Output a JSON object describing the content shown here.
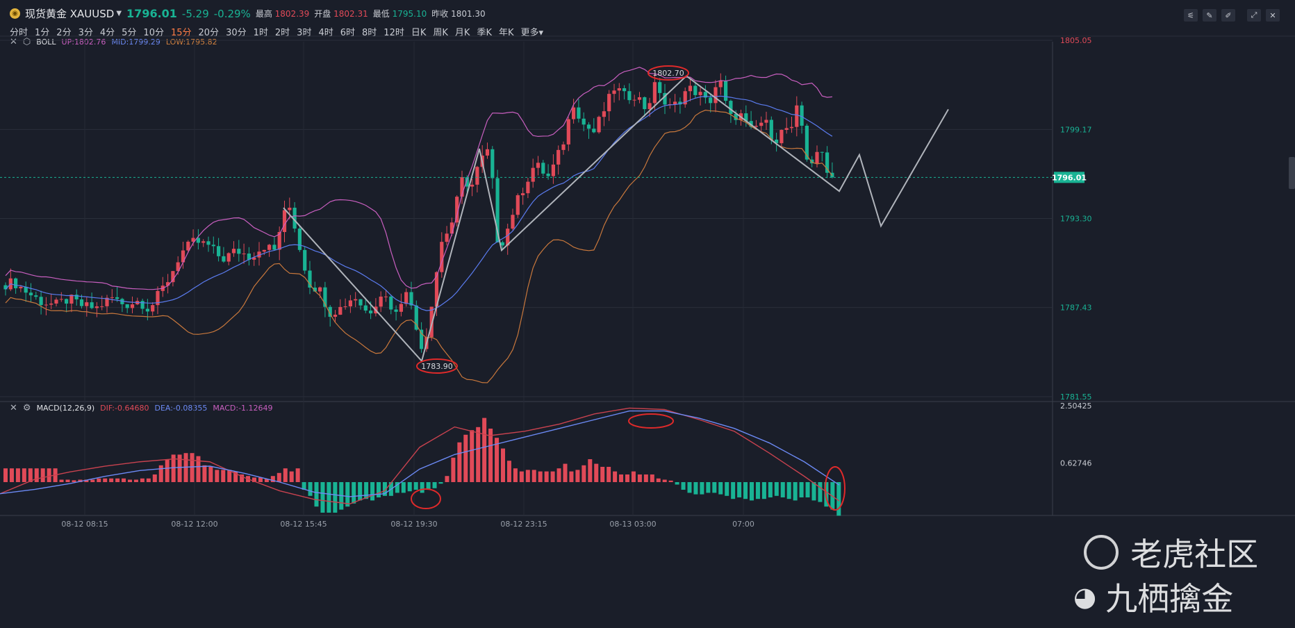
{
  "header": {
    "coin_icon": "gold-coin-icon",
    "symbol": "现货黄金 XAUUSD",
    "price": "1796.01",
    "change": "-5.29",
    "change_pct": "-0.29%",
    "high_label": "最高",
    "high": "1802.39",
    "open_label": "开盘",
    "open": "1802.31",
    "low_label": "最低",
    "low": "1795.10",
    "prev_label": "昨收",
    "prev": "1801.30"
  },
  "periods": [
    "分时",
    "1分",
    "2分",
    "3分",
    "4分",
    "5分",
    "10分",
    "15分",
    "20分",
    "30分",
    "1时",
    "2时",
    "3时",
    "4时",
    "6时",
    "8时",
    "12时",
    "日K",
    "周K",
    "月K",
    "季K",
    "年K",
    "更多"
  ],
  "active_period": "15分",
  "boll": {
    "name": "BOLL",
    "up": "UP:1802.76",
    "mid": "MID:1799.29",
    "low": "LOW:1795.82"
  },
  "macd": {
    "name": "MACD(12,26,9)",
    "dif": "DIF:-0.64680",
    "dea": "DEA:-0.08355",
    "macd": "MACD:-1.12649"
  },
  "colors": {
    "up": "#e14a58",
    "down": "#19b394",
    "boll_up": "#c95fc0",
    "boll_mid": "#5b7cf0",
    "boll_low": "#c9783c",
    "drawing": "#b0b4bb",
    "annotation": "#e02a2a",
    "last_price_bg": "#19b394"
  },
  "chart_data": [
    {
      "type": "candlestick",
      "name": "XAUUSD 15分",
      "ylim": [
        1781.55,
        1805.05
      ],
      "y_ticks": [
        "1805.05",
        "1799.17",
        "1793.30",
        "1787.43",
        "1781.55"
      ],
      "last_price_tag": "1796.01",
      "x_tick_labels": [
        "08-12 08:15",
        "08-12 12:00",
        "08-12 15:45",
        "08-12 19:30",
        "08-12 23:15",
        "08-13 03:00",
        "07:00"
      ],
      "annotations": [
        "1783.90",
        "1802.70"
      ]
    },
    {
      "type": "bar",
      "name": "MACD",
      "y_ticks": [
        "2.50425",
        "0.62746"
      ],
      "histogram": [
        0.45,
        0.45,
        0.45,
        0.45,
        0.45,
        0.45,
        0.45,
        0.45,
        0.45,
        0.08,
        0.08,
        0.06,
        0.08,
        0.08,
        0.08,
        0.12,
        0.12,
        0.12,
        0.12,
        0.12,
        0.08,
        0.08,
        0.12,
        0.12,
        0.25,
        0.55,
        0.75,
        0.9,
        0.9,
        0.95,
        0.95,
        0.85,
        0.55,
        0.5,
        0.4,
        0.4,
        0.4,
        0.35,
        0.25,
        0.2,
        0.15,
        0.15,
        0.1,
        0.2,
        0.3,
        0.45,
        0.35,
        0.45,
        -0.25,
        -0.45,
        -0.8,
        -1.0,
        -1.0,
        -1.0,
        -0.9,
        -0.8,
        -0.7,
        -0.6,
        -0.55,
        -0.6,
        -0.5,
        -0.45,
        -0.45,
        -0.35,
        -0.35,
        -0.3,
        -0.25,
        -0.35,
        -0.25,
        -0.2,
        -0.05,
        0.2,
        0.8,
        1.3,
        1.55,
        1.7,
        1.8,
        2.1,
        1.75,
        1.45,
        1.1,
        0.7,
        0.45,
        0.35,
        0.4,
        0.4,
        0.35,
        0.35,
        0.35,
        0.45,
        0.6,
        0.35,
        0.4,
        0.55,
        0.75,
        0.6,
        0.5,
        0.5,
        0.35,
        0.25,
        0.25,
        0.35,
        0.25,
        0.25,
        0.25,
        0.12,
        0.08,
        0.05,
        -0.08,
        -0.25,
        -0.35,
        -0.4,
        -0.4,
        -0.35,
        -0.35,
        -0.4,
        -0.45,
        -0.55,
        -0.5,
        -0.55,
        -0.6,
        -0.55,
        -0.55,
        -0.5,
        -0.45,
        -0.5,
        -0.55,
        -0.6,
        -0.5,
        -0.5,
        -0.6,
        -0.65,
        -0.8,
        -0.9,
        -1.1
      ],
      "dif": [
        -0.4,
        0.1,
        0.35,
        0.55,
        0.7,
        0.8,
        0.7,
        0.15,
        -0.3,
        -0.6,
        -0.75,
        -0.3,
        1.2,
        1.9,
        1.6,
        1.75,
        2.0,
        2.35,
        2.55,
        2.5,
        2.15,
        1.75,
        1.0,
        0.2,
        -0.65
      ],
      "dea": [
        -0.4,
        -0.25,
        -0.05,
        0.2,
        0.4,
        0.5,
        0.55,
        0.3,
        0.0,
        -0.35,
        -0.5,
        -0.4,
        0.45,
        0.95,
        1.25,
        1.55,
        1.85,
        2.15,
        2.45,
        2.45,
        2.2,
        1.85,
        1.35,
        0.7,
        -0.1
      ]
    }
  ],
  "watermarks": {
    "tiger_logo": "tiger-logo-icon",
    "tiger_text": "老虎社区",
    "weibo_logo": "weibo-logo-icon",
    "weibo_text": "九栖擒金"
  }
}
